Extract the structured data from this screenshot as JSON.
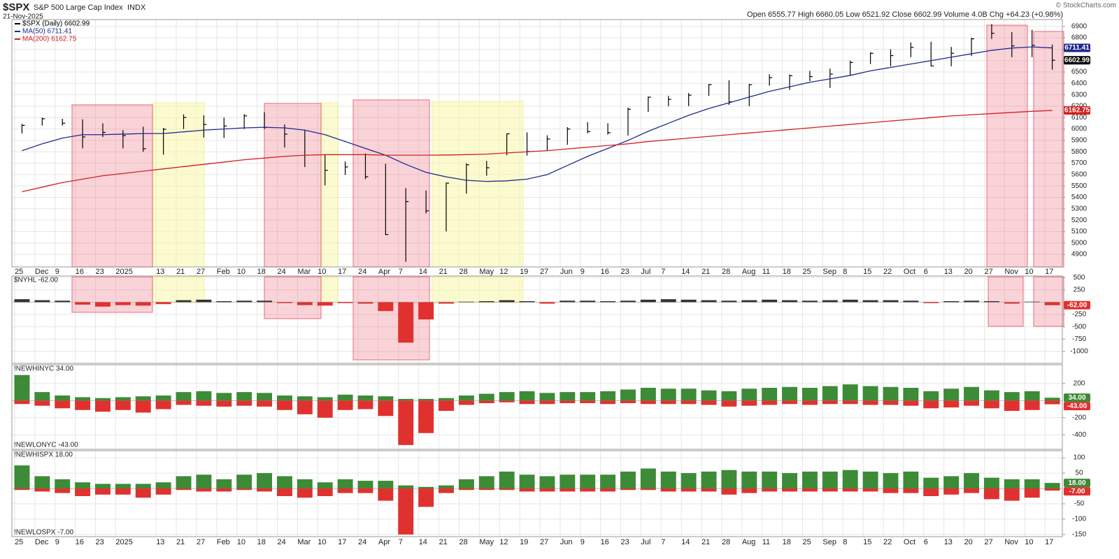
{
  "header": {
    "symbol": "$SPX",
    "name": "S&P 500 Large Cap Index",
    "exchange": "INDX",
    "date": "21-Nov-2025",
    "quote": "Open 6555.77  High 6660.05  Low 6521.92  Close 6602.99  Volume 4.0B  Chg +64.23 (+0.98%)",
    "credit": "© StockCharts.com"
  },
  "chart_data": [
    {
      "type": "ohlc",
      "grid": true,
      "legend": "upper left",
      "categories": [
        "25",
        "Dec",
        "9",
        "16",
        "23",
        "2025",
        null,
        "13",
        "21",
        "27",
        "Feb",
        "10",
        "18",
        "24",
        "Mar",
        "10",
        "17",
        "24",
        "Apr",
        "7",
        "14",
        "21",
        "28",
        "May",
        "12",
        "19",
        "27",
        "Jun",
        "9",
        "16",
        "23",
        "Jul",
        "7",
        "14",
        "21",
        "28",
        "Aug",
        "11",
        "18",
        "25",
        "Sep",
        "8",
        "15",
        "22",
        "Oct",
        "6",
        "13",
        "20",
        "27",
        "Nov",
        "10",
        "17"
      ],
      "ylim": [
        4790,
        6960
      ],
      "yticks": [
        4900,
        5000,
        5100,
        5200,
        5300,
        5400,
        5500,
        5600,
        5700,
        5800,
        5900,
        6000,
        6100,
        6200,
        6300,
        6400,
        6500,
        6600,
        6700,
        6800,
        6900
      ],
      "series": [
        {
          "name": "$SPX (Daily) 6602.99",
          "color": "#000000",
          "high": [
            6045,
            6100,
            6090,
            6085,
            6050,
            5990,
            6020,
            6010,
            6128,
            6120,
            6100,
            6130,
            6147,
            6040,
            5990,
            5780,
            5715,
            5786,
            5695,
            5481,
            5460,
            5530,
            5700,
            5720,
            5960,
            5970,
            5945,
            6016,
            6060,
            6050,
            6187,
            6285,
            6290,
            6315,
            6395,
            6427,
            6395,
            6480,
            6478,
            6510,
            6530,
            6600,
            6672,
            6700,
            6760,
            6765,
            6720,
            6800,
            6920,
            6850,
            6870,
            6740
          ],
          "low": [
            5960,
            6030,
            6030,
            5830,
            5930,
            5830,
            5800,
            5775,
            6000,
            5925,
            5920,
            6000,
            6000,
            5837,
            5666,
            5505,
            5597,
            5560,
            5070,
            4835,
            5260,
            5101,
            5433,
            5590,
            5770,
            5767,
            5810,
            5861,
            5963,
            5950,
            5943,
            6150,
            6200,
            6201,
            6290,
            6212,
            6200,
            6380,
            6343,
            6420,
            6360,
            6470,
            6570,
            6550,
            6630,
            6550,
            6550,
            6640,
            6790,
            6630,
            6630,
            6520
          ],
          "values": [
            6032,
            6090,
            6051,
            5930,
            5970,
            5942,
            5827,
            5997,
            6101,
            6040,
            6026,
            6115,
            6013,
            5955,
            5770,
            5638,
            5667,
            5581,
            5074,
            5363,
            5282,
            5525,
            5686,
            5660,
            5958,
            5803,
            5912,
            6000,
            5977,
            5968,
            6173,
            6279,
            6260,
            6297,
            6389,
            6238,
            6389,
            6450,
            6467,
            6460,
            6482,
            6584,
            6664,
            6644,
            6716,
            6553,
            6664,
            6791,
            6840,
            6729,
            6734,
            6602.99
          ]
        },
        {
          "name": "MA(50) 6711.41",
          "type": "line",
          "color": "#1f2a8c",
          "values": [
            5810,
            5870,
            5920,
            5950,
            5950,
            5955,
            5960,
            5960,
            5975,
            5990,
            6000,
            6010,
            6015,
            6010,
            5990,
            5950,
            5890,
            5830,
            5770,
            5690,
            5620,
            5580,
            5550,
            5540,
            5545,
            5560,
            5600,
            5680,
            5760,
            5830,
            5900,
            5980,
            6050,
            6120,
            6180,
            6230,
            6280,
            6330,
            6370,
            6410,
            6440,
            6470,
            6510,
            6540,
            6570,
            6600,
            6630,
            6660,
            6690,
            6710,
            6720,
            6711.41
          ]
        },
        {
          "name": "MA(200) 6162.75",
          "type": "line",
          "color": "#d42020",
          "values": [
            5450,
            5490,
            5530,
            5560,
            5590,
            5610,
            5630,
            5650,
            5670,
            5690,
            5710,
            5730,
            5745,
            5760,
            5770,
            5775,
            5775,
            5775,
            5770,
            5770,
            5770,
            5772,
            5775,
            5780,
            5790,
            5800,
            5810,
            5825,
            5840,
            5855,
            5870,
            5890,
            5905,
            5920,
            5935,
            5950,
            5965,
            5980,
            5995,
            6010,
            6025,
            6040,
            6055,
            6070,
            6085,
            6100,
            6115,
            6125,
            6135,
            6145,
            6155,
            6162.75
          ]
        }
      ]
    },
    {
      "type": "bar",
      "grid": true,
      "ylim": [
        -1240,
        530
      ],
      "yticks": [
        500,
        250,
        -250,
        -500,
        -750,
        -1000
      ],
      "series": [
        {
          "name": "$NYHL -62.00",
          "color": "#333333",
          "negative_color": "#e0312f",
          "last_label": "-62.00",
          "values": [
            60,
            40,
            30,
            -50,
            -90,
            -60,
            -70,
            -40,
            40,
            50,
            20,
            30,
            30,
            -20,
            -60,
            -70,
            -20,
            -30,
            -180,
            -820,
            -350,
            -30,
            10,
            20,
            40,
            20,
            -30,
            30,
            30,
            20,
            30,
            50,
            60,
            50,
            40,
            30,
            40,
            50,
            40,
            30,
            40,
            50,
            40,
            40,
            30,
            -20,
            20,
            30,
            20,
            -30,
            10,
            -62
          ]
        }
      ]
    },
    {
      "type": "bar",
      "grid": true,
      "ylim": [
        -570,
        420
      ],
      "yticks": [
        200,
        -200,
        -400
      ],
      "series": [
        {
          "name": "!NEWHINYC 34.00",
          "color": "#3d8b37",
          "last_label": "34.00",
          "values": [
            300,
            100,
            60,
            40,
            30,
            40,
            50,
            60,
            100,
            110,
            90,
            100,
            90,
            60,
            50,
            40,
            70,
            60,
            50,
            20,
            20,
            30,
            60,
            80,
            100,
            110,
            90,
            100,
            100,
            110,
            130,
            150,
            140,
            140,
            120,
            110,
            140,
            150,
            160,
            150,
            170,
            190,
            170,
            160,
            150,
            110,
            140,
            160,
            120,
            100,
            110,
            34
          ]
        },
        {
          "name": "!NEWLONYC -43.00",
          "color": "#e0312f",
          "last_label": "-43.00",
          "values": [
            -40,
            -60,
            -90,
            -110,
            -130,
            -110,
            -140,
            -100,
            -50,
            -60,
            -70,
            -60,
            -70,
            -110,
            -160,
            -200,
            -110,
            -100,
            -180,
            -520,
            -380,
            -120,
            -50,
            -30,
            -20,
            -40,
            -40,
            -30,
            -30,
            -40,
            -30,
            -40,
            -40,
            -40,
            -50,
            -70,
            -60,
            -50,
            -40,
            -50,
            -40,
            -40,
            -50,
            -50,
            -60,
            -90,
            -80,
            -60,
            -90,
            -120,
            -110,
            -43
          ]
        }
      ]
    },
    {
      "type": "bar",
      "grid": true,
      "ylim": [
        -157,
        123
      ],
      "yticks": [
        100,
        50,
        -50,
        -100,
        -150
      ],
      "categories": [
        "25",
        "Dec",
        "9",
        "16",
        "23",
        "2025",
        null,
        "13",
        "21",
        "27",
        "Feb",
        "10",
        "18",
        "24",
        "Mar",
        "10",
        "17",
        "24",
        "Apr",
        "7",
        "14",
        "21",
        "28",
        "May",
        "12",
        "19",
        "27",
        "Jun",
        "9",
        "16",
        "23",
        "Jul",
        "7",
        "14",
        "21",
        "28",
        "Aug",
        "11",
        "18",
        "25",
        "Sep",
        "8",
        "15",
        "22",
        "Oct",
        "6",
        "13",
        "20",
        "27",
        "Nov",
        "10",
        "17"
      ],
      "series": [
        {
          "name": "!NEWHISPX 18.00",
          "color": "#3d8b37",
          "last_label": "18.00",
          "values": [
            75,
            40,
            30,
            20,
            15,
            15,
            15,
            20,
            40,
            45,
            30,
            45,
            50,
            40,
            30,
            20,
            30,
            25,
            25,
            10,
            5,
            10,
            30,
            40,
            55,
            45,
            40,
            45,
            45,
            45,
            55,
            65,
            55,
            50,
            55,
            60,
            55,
            55,
            50,
            55,
            55,
            60,
            55,
            50,
            55,
            35,
            40,
            50,
            35,
            30,
            30,
            18
          ]
        },
        {
          "name": "!NEWLOSPX -7.00",
          "color": "#e0312f",
          "last_label": "-7.00",
          "values": [
            -5,
            -10,
            -15,
            -25,
            -20,
            -20,
            -30,
            -20,
            -5,
            -10,
            -10,
            -5,
            -10,
            -25,
            -30,
            -25,
            -15,
            -15,
            -40,
            -150,
            -60,
            -15,
            -5,
            -5,
            -5,
            -10,
            -10,
            -10,
            -10,
            -10,
            -5,
            -5,
            -10,
            -10,
            -10,
            -20,
            -15,
            -10,
            -10,
            -10,
            -10,
            -10,
            -10,
            -15,
            -15,
            -25,
            -20,
            -15,
            -35,
            -40,
            -30,
            -7
          ]
        }
      ]
    }
  ]
}
